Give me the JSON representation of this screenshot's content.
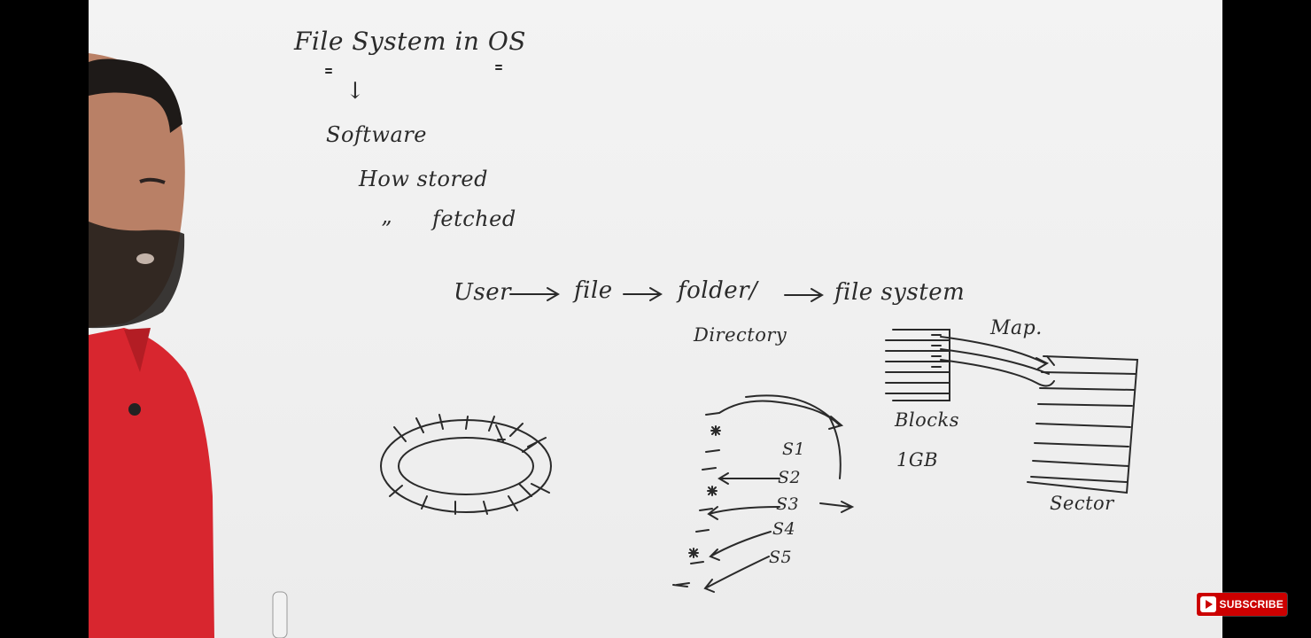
{
  "board": {
    "title": "File System in OS",
    "software": "Software",
    "how_stored": "How stored",
    "ditto": "”",
    "fetched": "fetched",
    "flow": {
      "user": "User",
      "file": "file",
      "folder": "folder/",
      "directory": "Directory",
      "file_system": "file system"
    },
    "map_label": "Map.",
    "blocks_label": "Blocks",
    "size_label": "1GB",
    "sector_label": "Sector",
    "segments": [
      "S1",
      "S2",
      "S3",
      "S4",
      "S5"
    ]
  },
  "overlay": {
    "subscribe_label": "SUBSCRIBE"
  },
  "colors": {
    "marker": "#2a2a2a",
    "board": "#f0f0f0",
    "shirt": "#d8262f",
    "subscribe_bg": "#cc0000"
  },
  "icons": [
    "play-icon",
    "microphone-icon",
    "marker-pen"
  ]
}
